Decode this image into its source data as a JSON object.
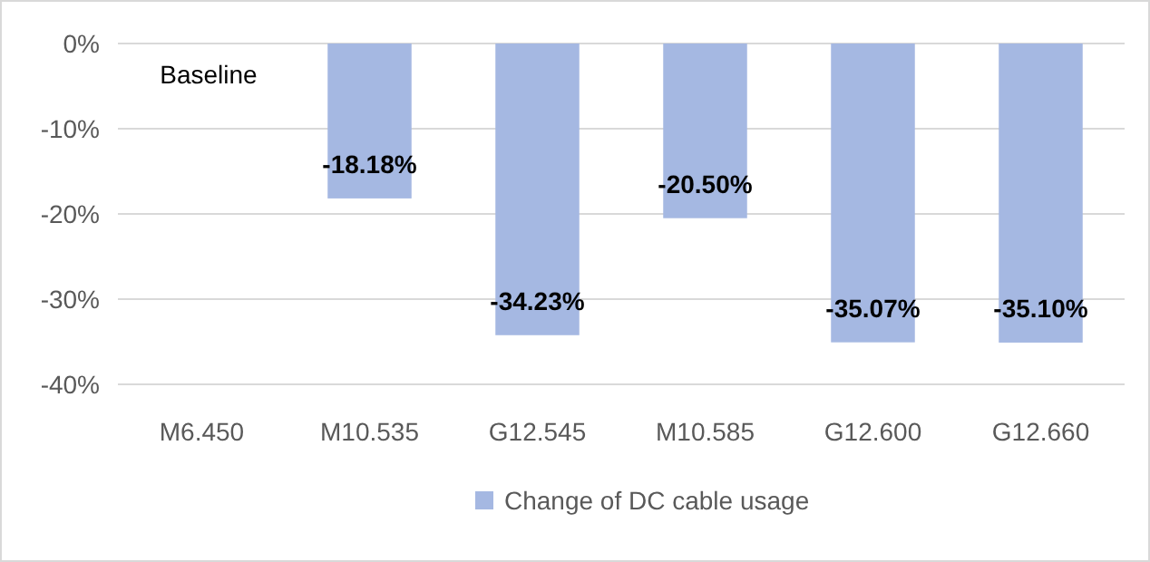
{
  "chart_data": {
    "type": "bar",
    "categories": [
      "M6.450",
      "M10.535",
      "G12.545",
      "M10.585",
      "G12.600",
      "G12.660"
    ],
    "series": [
      {
        "name": "Change of DC cable usage",
        "color": "#a5b8e2",
        "values": [
          0,
          -18.18,
          -34.23,
          -20.5,
          -35.07,
          -35.1
        ],
        "value_labels": [
          "Baseline",
          "-18.18%",
          "-34.23%",
          "-20.50%",
          "-35.07%",
          "-35.10%"
        ]
      }
    ],
    "ylim": [
      -40,
      0
    ],
    "yticks": [
      {
        "value": 0,
        "label": "0%"
      },
      {
        "value": -10,
        "label": "-10%"
      },
      {
        "value": -20,
        "label": "-20%"
      },
      {
        "value": -30,
        "label": "-30%"
      },
      {
        "value": -40,
        "label": "-40%"
      }
    ],
    "grid": "y",
    "legend": "bottom"
  }
}
